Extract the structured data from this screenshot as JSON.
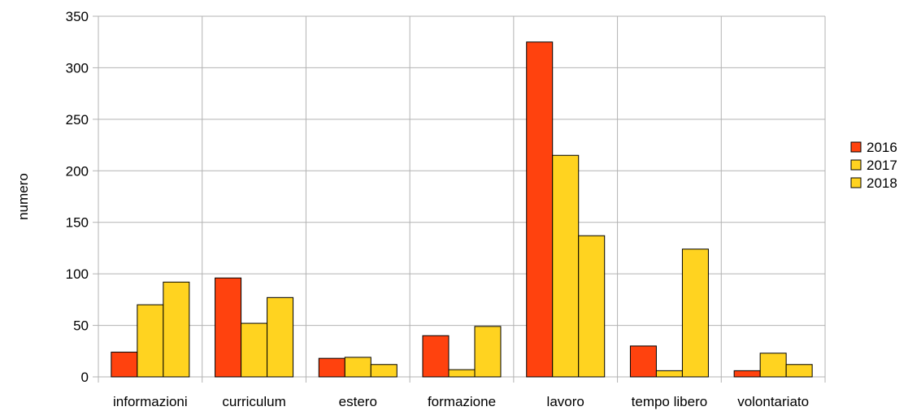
{
  "chart_data": {
    "type": "bar",
    "title": "",
    "xlabel": "",
    "ylabel": "numero",
    "ylim": [
      0,
      350
    ],
    "yticks": [
      0,
      50,
      100,
      150,
      200,
      250,
      300,
      350
    ],
    "categories": [
      "informazioni",
      "curriculum",
      "estero",
      "formazione",
      "lavoro",
      "tempo libero",
      "volontariato"
    ],
    "series": [
      {
        "name": "2016",
        "color": "#ff420e",
        "values": [
          24,
          96,
          18,
          40,
          325,
          30,
          6
        ]
      },
      {
        "name": "2017",
        "color": "#ffd320",
        "values": [
          70,
          52,
          19,
          7,
          215,
          6,
          23
        ]
      },
      {
        "name": "2018",
        "color": "#ffd320",
        "values": [
          92,
          77,
          12,
          49,
          137,
          124,
          12
        ]
      }
    ],
    "grid": true,
    "legend_position": "right"
  }
}
